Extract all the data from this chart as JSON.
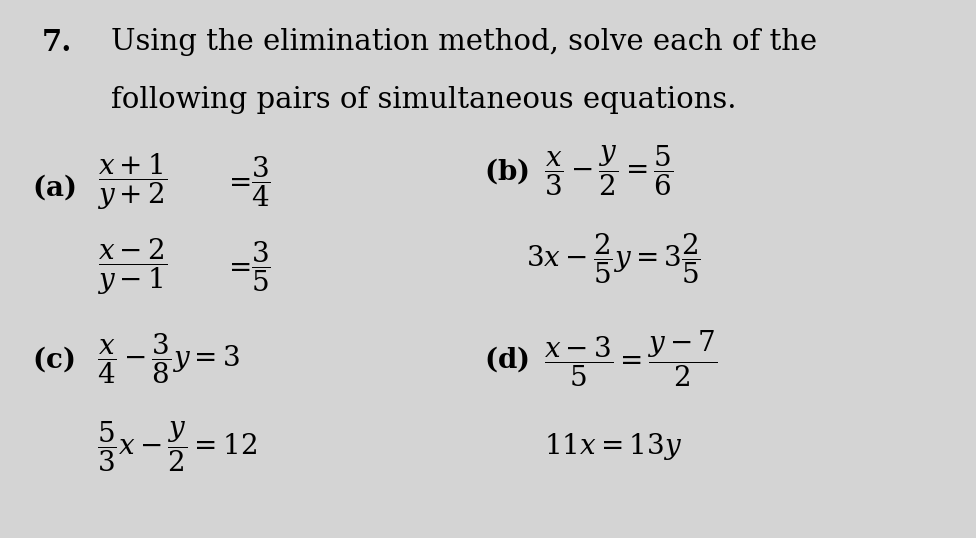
{
  "background_color": "#d4d4d4",
  "title_number": "7.",
  "title_line1": "Using the elimination method, solve each of the",
  "title_line2": "following pairs of simultaneous equations.",
  "title_fontsize": 21,
  "label_fontsize": 20,
  "eq_fontsize": 20
}
